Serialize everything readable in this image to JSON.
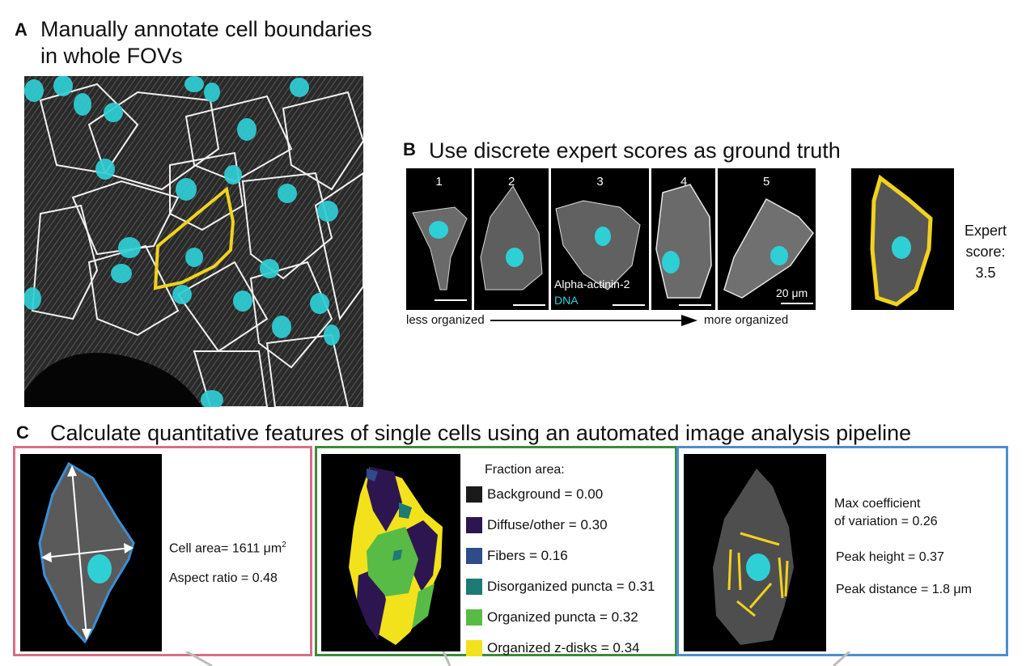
{
  "panelA": {
    "letter": "A",
    "title_line1": "Manually annotate cell boundaries",
    "title_line2": "in whole FOVs"
  },
  "panelB": {
    "letter": "B",
    "title": "Use discrete expert scores as ground truth",
    "scores": [
      "1",
      "2",
      "3",
      "4",
      "5"
    ],
    "stain_label": "Alpha-actinin-2",
    "dna_label": "DNA",
    "scale_label": "20 μm",
    "axis_left": "less organized",
    "axis_right": "more organized",
    "expert_line1": "Expert",
    "expert_line2": "score:",
    "expert_value": "3.5"
  },
  "panelC": {
    "letter": "C",
    "title": "Calculate quantitative features of single cells using an automated image analysis pipeline",
    "box1": {
      "area_label": "Cell area= 1611 μm",
      "area_sup": "2",
      "aspect_label": "Aspect ratio = 0.48"
    },
    "box2": {
      "header": "Fraction area:",
      "items": [
        {
          "label": "Background = 0.00",
          "color": "#1a1a1a"
        },
        {
          "label": "Diffuse/other = 0.30",
          "color": "#2d1650"
        },
        {
          "label": "Fibers = 0.16",
          "color": "#2f4b8c"
        },
        {
          "label": "Disorganized puncta = 0.31",
          "color": "#1e7a74"
        },
        {
          "label": "Organized puncta = 0.32",
          "color": "#58bb45"
        },
        {
          "label": "Organized z-disks = 0.34",
          "color": "#f2e21c"
        }
      ]
    },
    "box3": {
      "cov_line1": "Max coefficient",
      "cov_line2": "of variation = 0.26",
      "peak_height": "Peak height = 0.37",
      "peak_distance": "Peak distance = 1.8 μm"
    }
  },
  "colors": {
    "cyan_nucleus": "#2fcfd6",
    "yellow_outline": "#f2d21c",
    "blue_outline": "#3a8fd6",
    "box1_border": "#d96f86",
    "box2_border": "#3f8b3a",
    "box3_border": "#4a8fcf"
  }
}
